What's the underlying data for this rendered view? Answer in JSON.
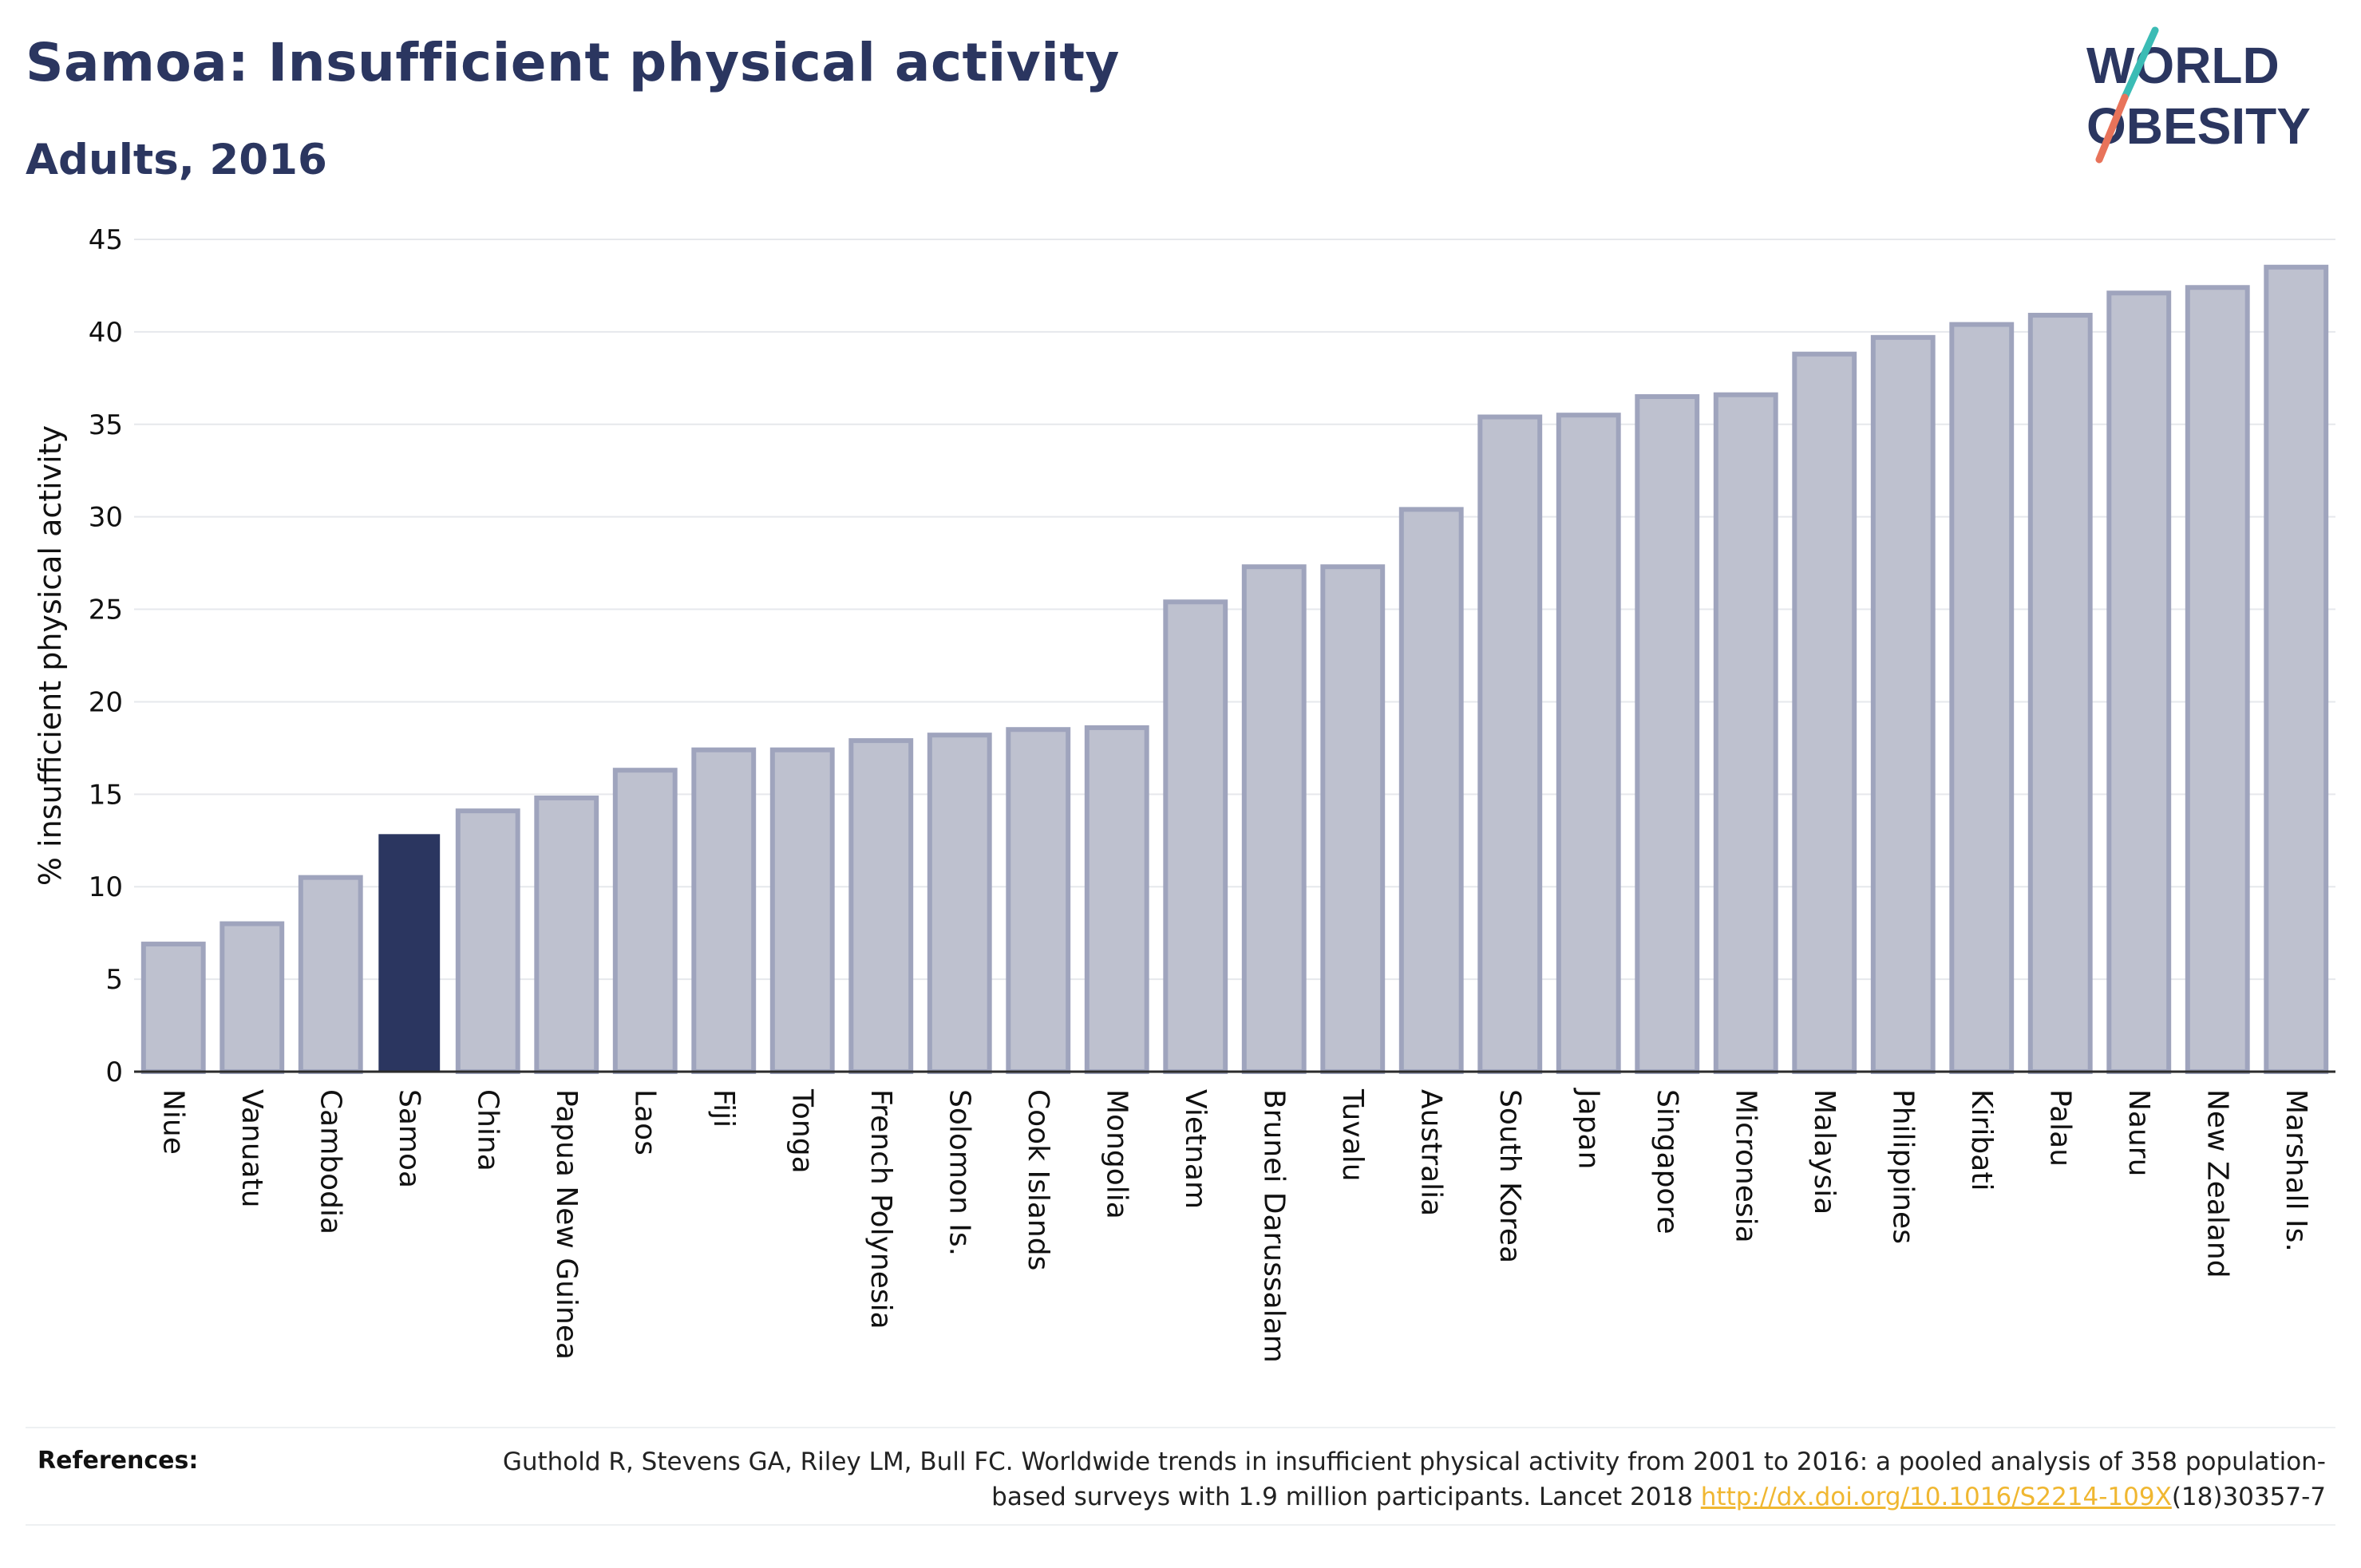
{
  "header": {
    "title": "Samoa: Insufficient physical activity",
    "subtitle": "Adults, 2016"
  },
  "logo": {
    "line1": "WORLD",
    "line2": "OBESITY",
    "accent_teal": "#3bbcb5",
    "accent_coral": "#e8735a",
    "text_color": "#2b3660"
  },
  "chart_data": {
    "type": "bar",
    "ylabel": "% insufficient physical activity",
    "xlabel": "",
    "ylim": [
      0,
      45
    ],
    "yticks": [
      0,
      5,
      10,
      15,
      20,
      25,
      30,
      35,
      40,
      45
    ],
    "grid": true,
    "highlight": "Samoa",
    "colors": {
      "bar": "#bec1cf",
      "bar_border": "#9fa4bd",
      "highlight": "#2b3660"
    },
    "categories": [
      "Niue",
      "Vanuatu",
      "Cambodia",
      "Samoa",
      "China",
      "Papua New Guinea",
      "Laos",
      "Fiji",
      "Tonga",
      "French Polynesia",
      "Solomon Is.",
      "Cook Islands",
      "Mongolia",
      "Vietnam",
      "Brunei Darussalam",
      "Tuvalu",
      "Australia",
      "South Korea",
      "Japan",
      "Singapore",
      "Micronesia",
      "Malaysia",
      "Philippines",
      "Kiribati",
      "Palau",
      "Nauru",
      "New Zealand",
      "Marshall Is."
    ],
    "values": [
      6.9,
      8.0,
      10.5,
      12.8,
      14.1,
      14.8,
      16.3,
      17.4,
      17.4,
      17.9,
      18.2,
      18.5,
      18.6,
      25.4,
      27.3,
      27.3,
      30.4,
      35.4,
      35.5,
      36.5,
      36.6,
      38.8,
      39.7,
      40.4,
      40.9,
      42.1,
      42.4,
      43.5
    ]
  },
  "references": {
    "label": "References:",
    "text_before": "Guthold R, Stevens GA, Riley LM, Bull FC. Worldwide trends in insufficient physical activity from 2001 to 2016: a pooled analysis of 358 population-based surveys with 1.9 million participants. Lancet 2018 ",
    "link": "http://dx.doi.org/10.1016/S2214-109X",
    "text_after": "(18)30357-7"
  }
}
